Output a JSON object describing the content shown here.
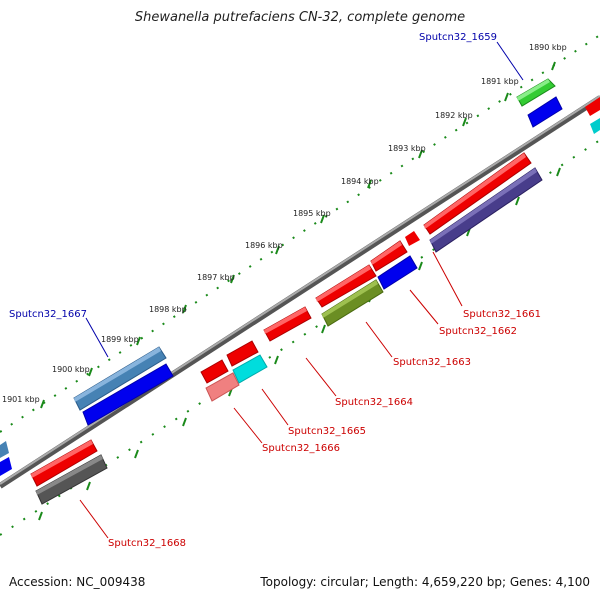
{
  "title": "Shewanella putrefaciens CN-32, complete genome",
  "accession": "Accession: NC_009438",
  "summary": "Topology: circular; Length: 4,659,220 bp; Genes: 4,100",
  "colors": {
    "backbone": "#888888",
    "ticks": "#1a8a1a",
    "label_red": "#cc0000",
    "label_blue": "#0000aa"
  },
  "ticks": [
    "1890 kbp",
    "1891 kbp",
    "1892 kbp",
    "1893 kbp",
    "1894 kbp",
    "1895 kbp",
    "1896 kbp",
    "1897 kbp",
    "1898 kbp",
    "1899 kbp",
    "1900 kbp",
    "1901 kbp"
  ],
  "gene_labels": [
    "Sputcn32_1659",
    "Sputcn32_1661",
    "Sputcn32_1662",
    "Sputcn32_1663",
    "Sputcn32_1664",
    "Sputcn32_1665",
    "Sputcn32_1666",
    "Sputcn32_1667",
    "Sputcn32_1668"
  ]
}
